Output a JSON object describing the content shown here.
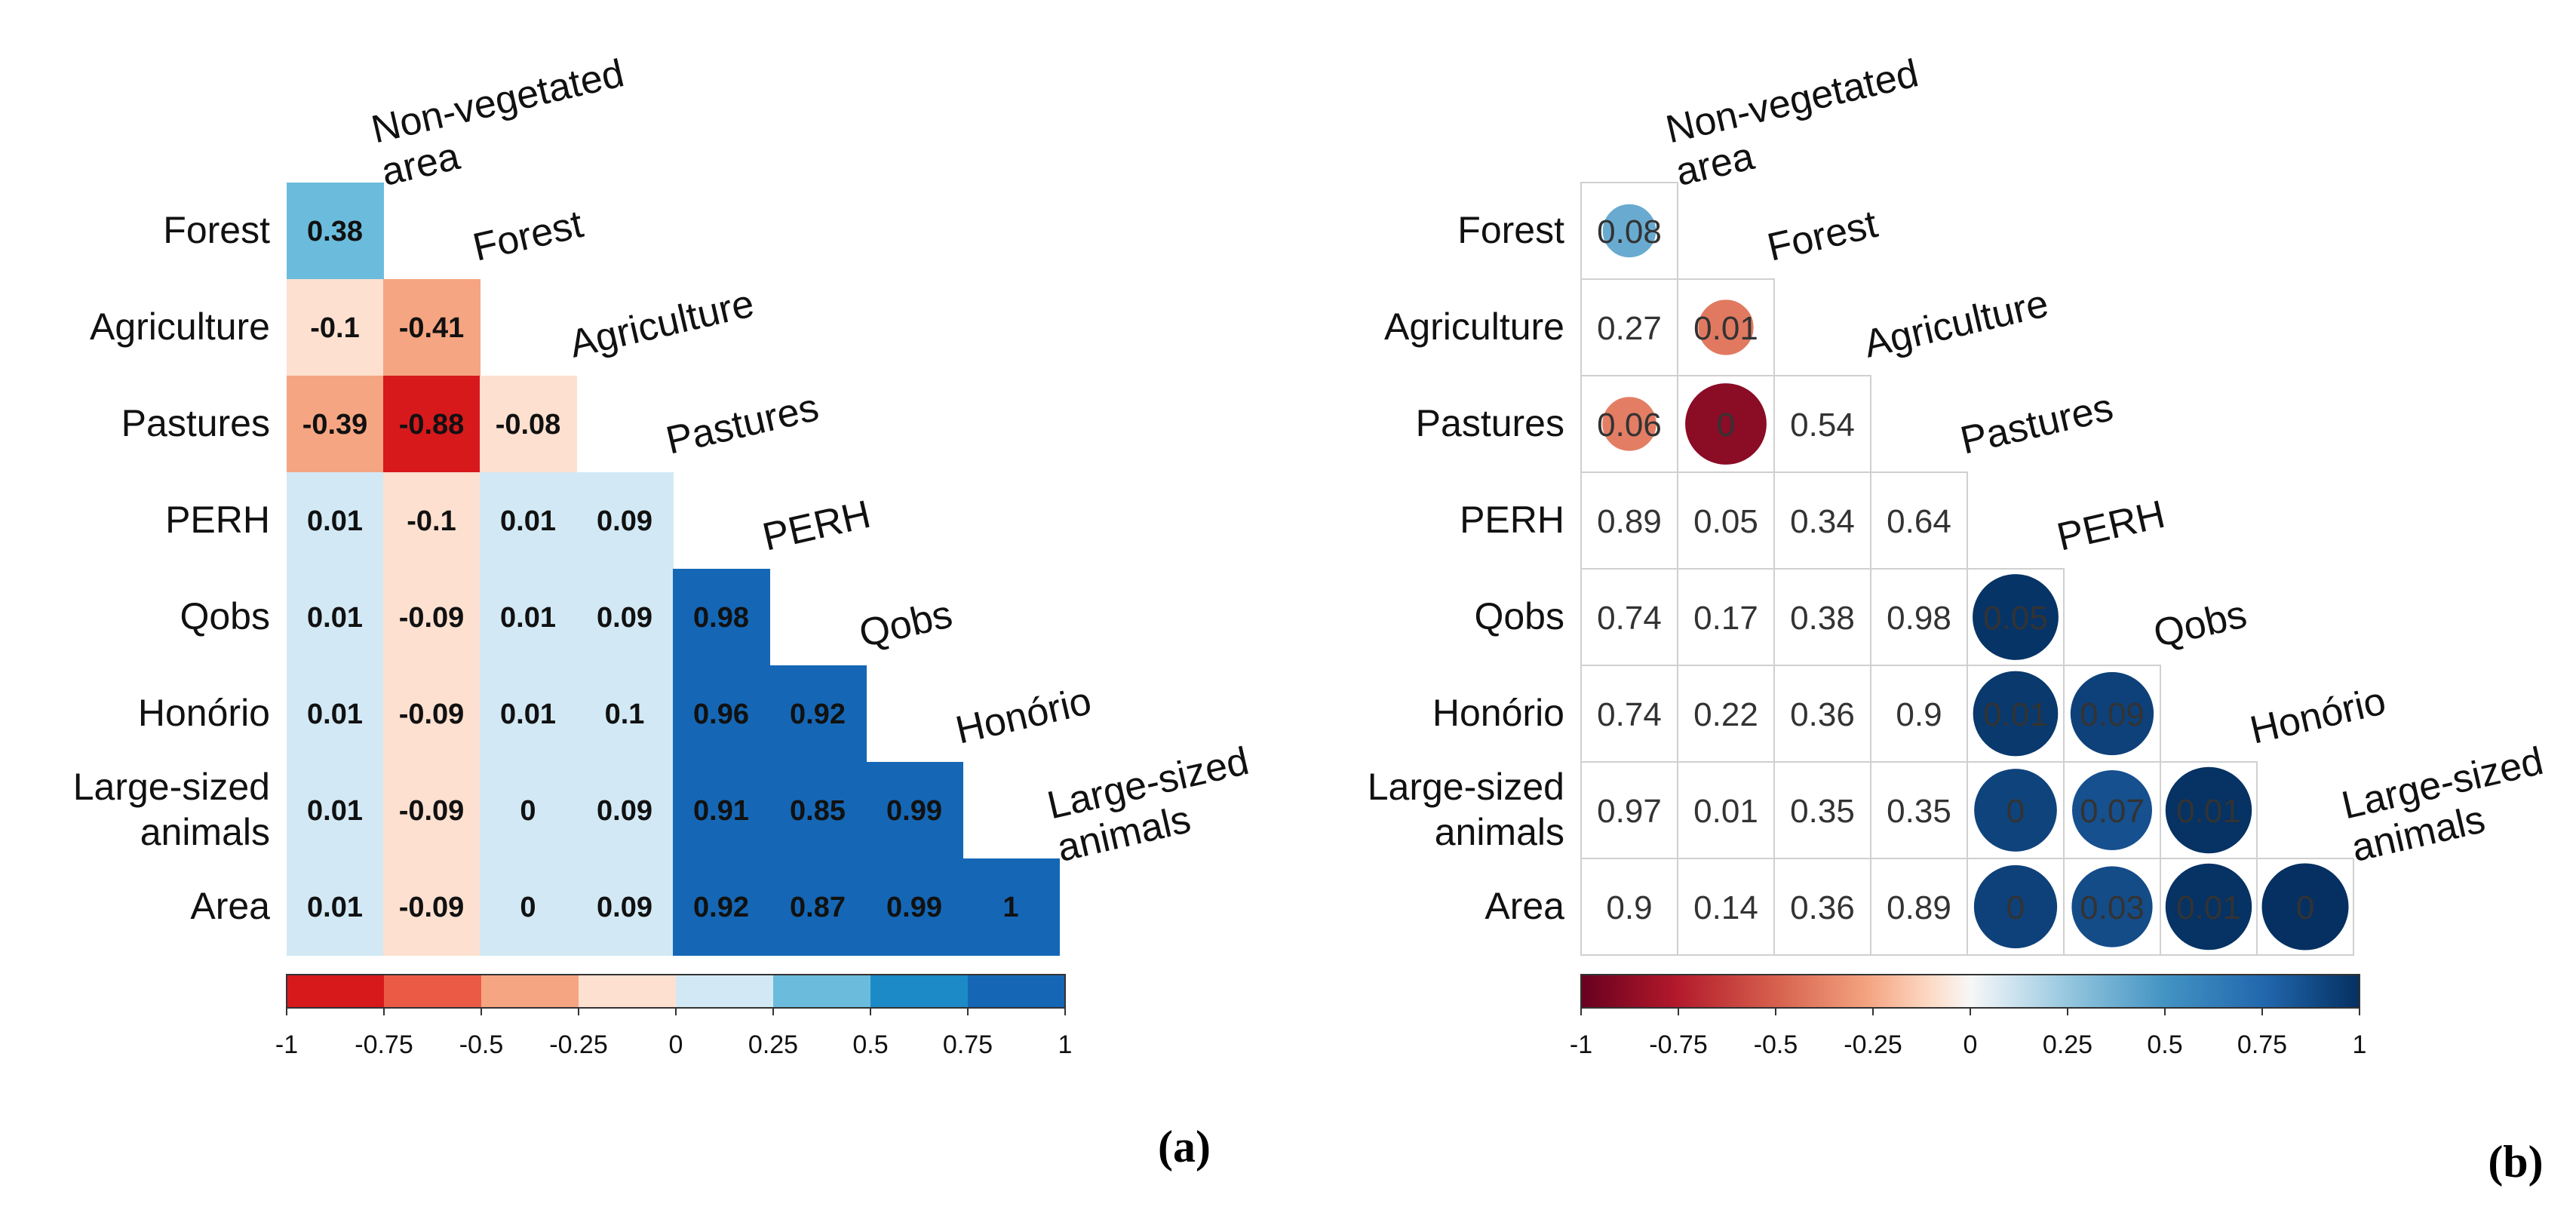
{
  "chart_data": [
    {
      "type": "heatmap",
      "panel_label": "(a)",
      "variables": [
        "Non-vegetated area",
        "Forest",
        "Agriculture",
        "Pastures",
        "PERH",
        "Qobs",
        "Honório",
        "Large-sized animals",
        "Area"
      ],
      "row_labels": [
        "Forest",
        "Agriculture",
        "Pastures",
        "PERH",
        "Qobs",
        "Honório",
        "Large-sized animals",
        "Area"
      ],
      "column_labels": [
        "Non-vegetated area",
        "Forest",
        "Agriculture",
        "Pastures",
        "PERH",
        "Qobs",
        "Honório",
        "Large-sized animals"
      ],
      "values": [
        [
          0.38
        ],
        [
          -0.1,
          -0.41
        ],
        [
          -0.39,
          -0.88,
          -0.08
        ],
        [
          0.01,
          -0.1,
          0.01,
          0.09
        ],
        [
          0.01,
          -0.09,
          0.01,
          0.09,
          0.98
        ],
        [
          0.01,
          -0.09,
          0.01,
          0.1,
          0.96,
          0.92
        ],
        [
          0.01,
          -0.09,
          0,
          0.09,
          0.91,
          0.85,
          0.99
        ],
        [
          0.01,
          -0.09,
          0,
          0.09,
          0.92,
          0.87,
          0.99,
          1
        ]
      ],
      "colorbar": {
        "range": [
          -1,
          1
        ],
        "ticks": [
          "-1",
          "-0.75",
          "-0.5",
          "-0.25",
          "0",
          "0.25",
          "0.5",
          "0.75",
          "1"
        ]
      }
    },
    {
      "type": "heatmap",
      "panel_label": "(b)",
      "variables": [
        "Non-vegetated area",
        "Forest",
        "Agriculture",
        "Pastures",
        "PERH",
        "Qobs",
        "Honório",
        "Large-sized animals",
        "Area"
      ],
      "row_labels": [
        "Forest",
        "Agriculture",
        "Pastures",
        "PERH",
        "Qobs",
        "Honório",
        "Large-sized animals",
        "Area"
      ],
      "column_labels": [
        "Non-vegetated area",
        "Forest",
        "Agriculture",
        "Pastures",
        "PERH",
        "Qobs",
        "Honório",
        "Large-sized animals"
      ],
      "values": [
        [
          "0.08"
        ],
        [
          "0.27",
          "0.01"
        ],
        [
          "0.06",
          "0",
          "0.54"
        ],
        [
          "0.89",
          "0.05",
          "0.34",
          "0.64"
        ],
        [
          "0.74",
          "0.17",
          "0.38",
          "0.98",
          "0.05"
        ],
        [
          "0.74",
          "0.22",
          "0.36",
          "0.9",
          "0.01",
          "0.09"
        ],
        [
          "0.97",
          "0.01",
          "0.35",
          "0.35",
          "0",
          "0.07",
          "0.01"
        ],
        [
          "0.9",
          "0.14",
          "0.36",
          "0.89",
          "0",
          "0.03",
          "0.01",
          "0"
        ]
      ],
      "circle_correlations": [
        [
          0.38
        ],
        [
          null,
          -0.41
        ],
        [
          -0.39,
          -0.88,
          null
        ],
        [
          null,
          null,
          null,
          null
        ],
        [
          null,
          null,
          null,
          null,
          0.98
        ],
        [
          null,
          null,
          null,
          null,
          0.96,
          0.92
        ],
        [
          null,
          null,
          null,
          null,
          0.91,
          0.85,
          0.99
        ],
        [
          null,
          null,
          null,
          null,
          0.92,
          0.87,
          0.99,
          1
        ]
      ],
      "colorbar": {
        "range": [
          -1,
          1
        ],
        "ticks": [
          "-1",
          "-0.75",
          "-0.5",
          "-0.25",
          "0",
          "0.25",
          "0.5",
          "0.75",
          "1"
        ]
      }
    }
  ]
}
